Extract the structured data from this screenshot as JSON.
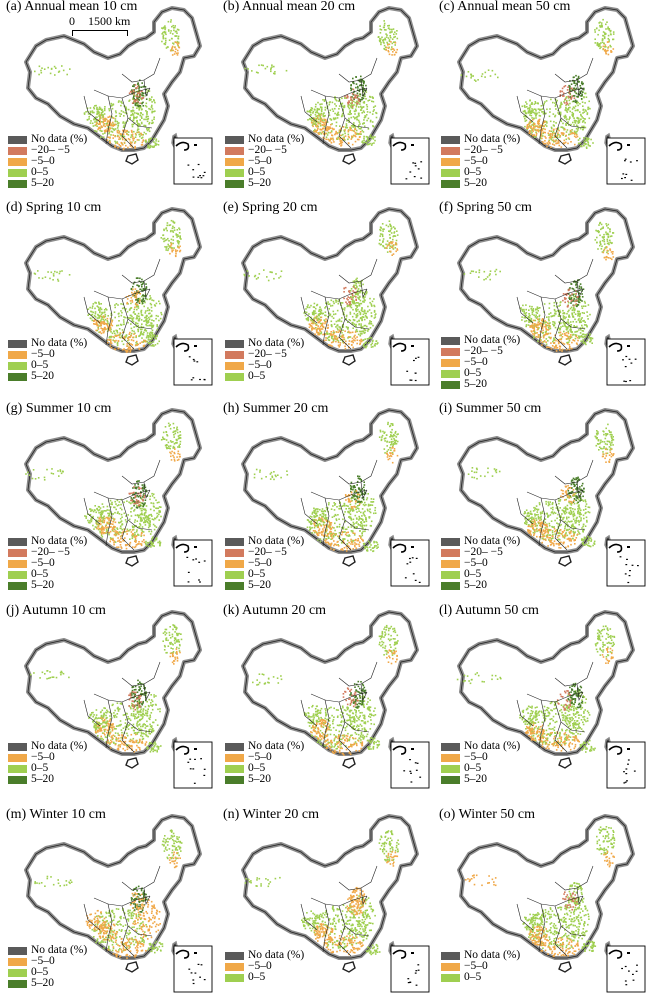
{
  "colors": {
    "no_data": "#5a5a5a",
    "m20_m5": "#d27a5e",
    "m5_0": "#f0a848",
    "p0_5": "#9fcf50",
    "p5_20": "#4a7d2a",
    "border": "#8c8c8c"
  },
  "scale_bar": {
    "zero": "0",
    "distance": "1500 km"
  },
  "legend_labels": {
    "no_data": "No data (%)",
    "m20_m5": "−20– −5",
    "m5_0": "−5–0",
    "p0_5": "0–5",
    "p5_20": "5–20"
  },
  "panels": [
    {
      "label": "(a) Annual mean 10 cm",
      "legend": [
        "no_data",
        "m20_m5",
        "m5_0",
        "p0_5",
        "p5_20"
      ]
    },
    {
      "label": "(b) Annual mean 20 cm",
      "legend": [
        "no_data",
        "m20_m5",
        "m5_0",
        "p0_5",
        "p5_20"
      ]
    },
    {
      "label": "(c) Annual mean 50 cm",
      "legend": [
        "no_data",
        "m20_m5",
        "m5_0",
        "p0_5",
        "p5_20"
      ]
    },
    {
      "label": "(d) Spring 10 cm",
      "legend": [
        "no_data",
        "m5_0",
        "p0_5",
        "p5_20"
      ]
    },
    {
      "label": "(e) Spring 20 cm",
      "legend": [
        "no_data",
        "m20_m5",
        "m5_0",
        "p0_5"
      ]
    },
    {
      "label": "(f) Spring 50 cm",
      "legend": [
        "no_data",
        "m20_m5",
        "m5_0",
        "p0_5",
        "p5_20"
      ]
    },
    {
      "label": "(g) Summer 10 cm",
      "legend": [
        "no_data",
        "m20_m5",
        "m5_0",
        "p0_5",
        "p5_20"
      ]
    },
    {
      "label": "(h) Summer 20 cm",
      "legend": [
        "no_data",
        "m20_m5",
        "m5_0",
        "p0_5",
        "p5_20"
      ]
    },
    {
      "label": "(i) Summer 50 cm",
      "legend": [
        "no_data",
        "m20_m5",
        "m5_0",
        "p0_5",
        "p5_20"
      ]
    },
    {
      "label": "(j) Autumn 10 cm",
      "legend": [
        "no_data",
        "m5_0",
        "p0_5",
        "p5_20"
      ]
    },
    {
      "label": "(k) Autumn 20 cm",
      "legend": [
        "no_data",
        "m5_0",
        "p0_5",
        "p5_20"
      ]
    },
    {
      "label": "(l) Autumn 50 cm",
      "legend": [
        "no_data",
        "m5_0",
        "p0_5",
        "p5_20"
      ]
    },
    {
      "label": "(m) Winter 10 cm",
      "legend": [
        "no_data",
        "m5_0",
        "p0_5",
        "p5_20"
      ]
    },
    {
      "label": "(n) Winter 20 cm",
      "legend": [
        "no_data",
        "m5_0",
        "p0_5"
      ]
    },
    {
      "label": "(o) Winter 50 cm",
      "legend": [
        "no_data",
        "m5_0",
        "p0_5"
      ]
    }
  ]
}
